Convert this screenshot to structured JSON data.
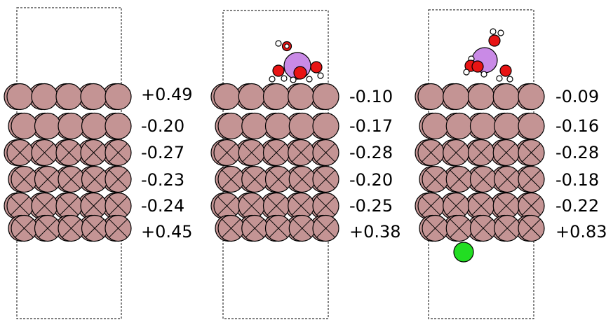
{
  "panels": [
    {
      "id": "panel-1",
      "adsorbate": "none",
      "counter_ion": false,
      "layer_charges": [
        "+0.49",
        "-0.20",
        "-0.27",
        "-0.23",
        "-0.24",
        "+0.45"
      ]
    },
    {
      "id": "panel-2",
      "adsorbate": "hydrated-cation",
      "counter_ion": false,
      "layer_charges": [
        "-0.10",
        "-0.17",
        "-0.28",
        "-0.20",
        "-0.25",
        "+0.38"
      ]
    },
    {
      "id": "panel-3",
      "adsorbate": "hydrated-cation",
      "counter_ion": true,
      "layer_charges": [
        "-0.09",
        "-0.16",
        "-0.28",
        "-0.18",
        "-0.22",
        "+0.83"
      ]
    }
  ],
  "colors": {
    "metal_atom": "#c49494",
    "cation": "#c98ae6",
    "oxygen": "#e81414",
    "hydrogen": "#ffffff",
    "counter_ion": "#22dd22",
    "cell_border": "#333333"
  },
  "layer_pattern": [
    "plain",
    "plain",
    "crossed",
    "crossed",
    "crossed",
    "crossed"
  ]
}
